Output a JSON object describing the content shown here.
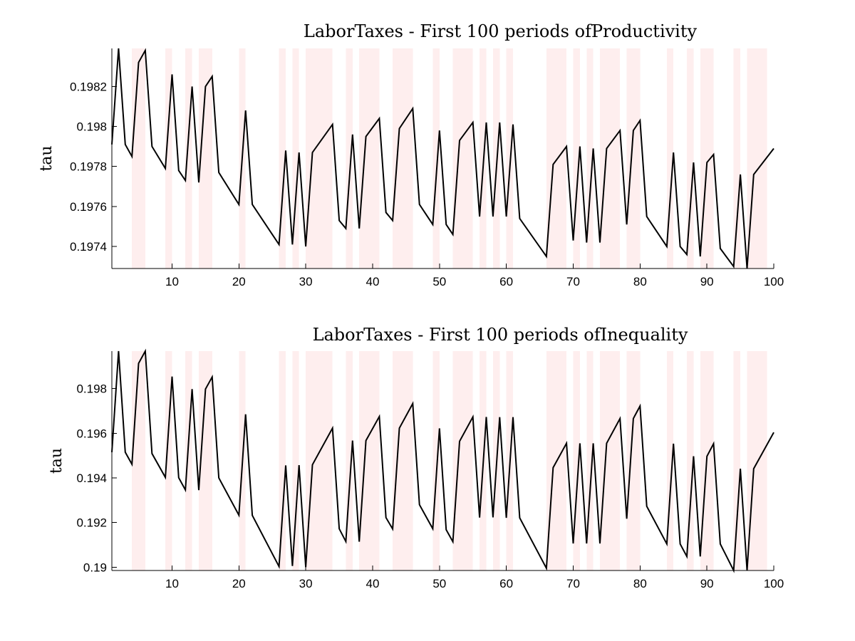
{
  "figure": {
    "background": "#ffffff",
    "band_color": "#fde8e8",
    "line_color": "#000000"
  },
  "chart_data": [
    {
      "type": "line",
      "title": "LaborTaxes - First 100 periods ofProductivity",
      "xlabel": "",
      "ylabel": "tau",
      "xlim": [
        1,
        100
      ],
      "ylim": [
        0.19729,
        0.19839
      ],
      "xticks": [
        10,
        20,
        30,
        40,
        50,
        60,
        70,
        80,
        90,
        100
      ],
      "xtick_labels": [
        "10",
        "20",
        "30",
        "40",
        "50",
        "60",
        "70",
        "80",
        "90",
        "100"
      ],
      "yticks": [
        0.1974,
        0.1976,
        0.1978,
        0.198,
        0.1982
      ],
      "ytick_labels": [
        "0.1974",
        "0.1976",
        "0.1978",
        "0.198",
        "0.1982"
      ],
      "grid": false,
      "shaded_periods": [
        [
          4,
          6
        ],
        [
          9,
          10
        ],
        [
          12,
          13
        ],
        [
          14,
          16
        ],
        [
          20,
          21
        ],
        [
          26,
          27
        ],
        [
          28,
          29
        ],
        [
          30,
          34
        ],
        [
          36,
          37
        ],
        [
          38,
          41
        ],
        [
          43,
          46
        ],
        [
          49,
          50
        ],
        [
          52,
          55
        ],
        [
          56,
          57
        ],
        [
          58,
          59
        ],
        [
          60,
          61
        ],
        [
          66,
          69
        ],
        [
          70,
          71
        ],
        [
          72,
          73
        ],
        [
          74,
          77
        ],
        [
          78,
          80
        ],
        [
          84,
          85
        ],
        [
          87,
          88
        ],
        [
          89,
          91
        ],
        [
          94,
          95
        ],
        [
          96,
          99
        ]
      ],
      "x": [
        1,
        2,
        3,
        4,
        5,
        6,
        7,
        9,
        10,
        11,
        12,
        13,
        14,
        15,
        16,
        17,
        20,
        21,
        22,
        26,
        27,
        28,
        29,
        30,
        31,
        34,
        35,
        36,
        37,
        38,
        39,
        41,
        42,
        43,
        44,
        46,
        47,
        49,
        50,
        51,
        52,
        53,
        55,
        56,
        57,
        58,
        59,
        60,
        61,
        62,
        66,
        67,
        69,
        70,
        71,
        72,
        73,
        74,
        75,
        77,
        78,
        79,
        80,
        81,
        84,
        85,
        86,
        87,
        88,
        89,
        90,
        91,
        92,
        94,
        95,
        96,
        97,
        100
      ],
      "series": [
        {
          "values": [
            0.19791,
            0.19839,
            0.19791,
            0.19785,
            0.19832,
            0.19838,
            0.1979,
            0.19779,
            0.19826,
            0.19778,
            0.19773,
            0.1982,
            0.19772,
            0.1982,
            0.19825,
            0.19777,
            0.19761,
            0.19808,
            0.19761,
            0.19741,
            0.19788,
            0.19741,
            0.19787,
            0.1974,
            0.19787,
            0.19801,
            0.19753,
            0.19749,
            0.19796,
            0.19749,
            0.19795,
            0.19804,
            0.19757,
            0.19753,
            0.19799,
            0.19809,
            0.19761,
            0.19751,
            0.19798,
            0.19751,
            0.19746,
            0.19793,
            0.19802,
            0.19755,
            0.19802,
            0.19755,
            0.19802,
            0.19755,
            0.19801,
            0.19754,
            0.19735,
            0.19781,
            0.1979,
            0.19743,
            0.1979,
            0.19742,
            0.19789,
            0.19742,
            0.19789,
            0.19798,
            0.19751,
            0.19798,
            0.19803,
            0.19755,
            0.1974,
            0.19787,
            0.1974,
            0.19736,
            0.19782,
            0.19735,
            0.19782,
            0.19786,
            0.19739,
            0.1973,
            0.19776,
            0.19729,
            0.19776,
            0.19789
          ]
        }
      ]
    },
    {
      "type": "line",
      "title": "LaborTaxes - First 100 periods ofInequality",
      "xlabel": "",
      "ylabel": "tau",
      "xlim": [
        1,
        100
      ],
      "ylim": [
        0.18985,
        0.19968
      ],
      "xticks": [
        10,
        20,
        30,
        40,
        50,
        60,
        70,
        80,
        90,
        100
      ],
      "xtick_labels": [
        "10",
        "20",
        "30",
        "40",
        "50",
        "60",
        "70",
        "80",
        "90",
        "100"
      ],
      "yticks": [
        0.19,
        0.192,
        0.194,
        0.196,
        0.198
      ],
      "ytick_labels": [
        "0.19",
        "0.192",
        "0.194",
        "0.196",
        "0.198"
      ],
      "grid": false,
      "shaded_periods": [
        [
          4,
          6
        ],
        [
          9,
          10
        ],
        [
          12,
          13
        ],
        [
          14,
          16
        ],
        [
          20,
          21
        ],
        [
          26,
          27
        ],
        [
          28,
          29
        ],
        [
          30,
          34
        ],
        [
          36,
          37
        ],
        [
          38,
          41
        ],
        [
          43,
          46
        ],
        [
          49,
          50
        ],
        [
          52,
          55
        ],
        [
          56,
          57
        ],
        [
          58,
          59
        ],
        [
          60,
          61
        ],
        [
          66,
          69
        ],
        [
          70,
          71
        ],
        [
          72,
          73
        ],
        [
          74,
          77
        ],
        [
          78,
          80
        ],
        [
          84,
          85
        ],
        [
          87,
          88
        ],
        [
          89,
          91
        ],
        [
          94,
          95
        ],
        [
          96,
          99
        ]
      ],
      "x": [
        1,
        2,
        3,
        4,
        5,
        6,
        7,
        9,
        10,
        11,
        12,
        13,
        14,
        15,
        16,
        17,
        20,
        21,
        22,
        26,
        27,
        28,
        29,
        30,
        31,
        34,
        35,
        36,
        37,
        38,
        39,
        41,
        42,
        43,
        44,
        46,
        47,
        49,
        50,
        51,
        52,
        53,
        55,
        56,
        57,
        58,
        59,
        60,
        61,
        62,
        66,
        67,
        69,
        70,
        71,
        72,
        73,
        74,
        75,
        77,
        78,
        79,
        80,
        81,
        84,
        85,
        86,
        87,
        88,
        89,
        90,
        91,
        92,
        94,
        95,
        96,
        97,
        100
      ],
      "series": [
        {
          "values": [
            0.19515,
            0.19968,
            0.19515,
            0.19461,
            0.19913,
            0.19968,
            0.19509,
            0.19402,
            0.19854,
            0.19401,
            0.19346,
            0.19798,
            0.19345,
            0.19798,
            0.19852,
            0.194,
            0.19233,
            0.19685,
            0.19232,
            0.19003,
            0.19456,
            0.19005,
            0.19457,
            0.19,
            0.19459,
            0.19623,
            0.19172,
            0.19115,
            0.19567,
            0.19114,
            0.19567,
            0.19675,
            0.19222,
            0.19171,
            0.19623,
            0.19733,
            0.1928,
            0.19172,
            0.19622,
            0.19168,
            0.19114,
            0.19564,
            0.19673,
            0.19222,
            0.19673,
            0.19223,
            0.19672,
            0.19221,
            0.19672,
            0.19221,
            0.18995,
            0.19446,
            0.19555,
            0.19106,
            0.19555,
            0.19106,
            0.19555,
            0.19106,
            0.19555,
            0.19666,
            0.19217,
            0.19666,
            0.19722,
            0.19273,
            0.19104,
            0.19553,
            0.19104,
            0.19048,
            0.19497,
            0.19048,
            0.19497,
            0.19553,
            0.19104,
            0.18985,
            0.19441,
            0.18985,
            0.19441,
            0.19604
          ]
        }
      ]
    }
  ]
}
